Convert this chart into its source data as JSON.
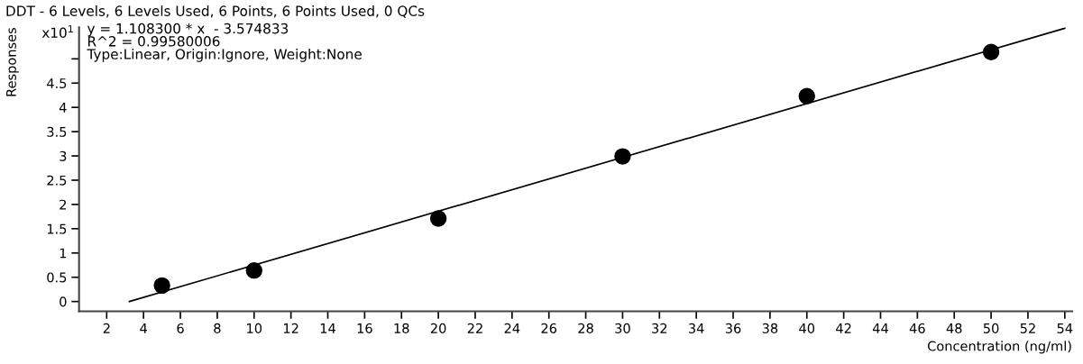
{
  "chart_data": {
    "type": "scatter",
    "title": "DDT - 6 Levels, 6 Levels Used, 6 Points, 6 Points Used, 0 QCs",
    "xlabel": "Concentration (ng/ml)",
    "ylabel": "Responses",
    "annotations": [
      "x10$^{1}$",
      "y = 1.108300 * x  - 3.574833",
      "R^2 = 0.99580006",
      "Type:Linear, Origin:Ignore, Weight:None"
    ],
    "series": [
      {
        "color": "#000000",
        "marker": "circle",
        "x": [
          5,
          10,
          20,
          30,
          40,
          50
        ],
        "values": [
          0.33,
          0.64,
          1.71,
          2.99,
          4.23,
          5.14
        ]
      },
      {
        "type": "line",
        "color": "#000000",
        "marker": "none",
        "line_style": "solid",
        "x": [
          3.23,
          54
        ],
        "values": [
          0,
          5.63
        ]
      }
    ],
    "xlim": [
      0.5,
      54.4
    ],
    "ylim": [
      -0.2,
      5.65
    ],
    "xticks": [
      2,
      4,
      6,
      8,
      10,
      12,
      14,
      16,
      18,
      20,
      22,
      24,
      26,
      28,
      30,
      32,
      34,
      36,
      38,
      40,
      42,
      44,
      46,
      48,
      50,
      52,
      54
    ],
    "yticks": [
      0,
      0.5,
      1,
      1.5,
      2,
      2.5,
      3,
      3.5,
      4,
      4.5,
      {
        "value": 5,
        "label": null
      }
    ],
    "grid": false,
    "legend": false
  }
}
